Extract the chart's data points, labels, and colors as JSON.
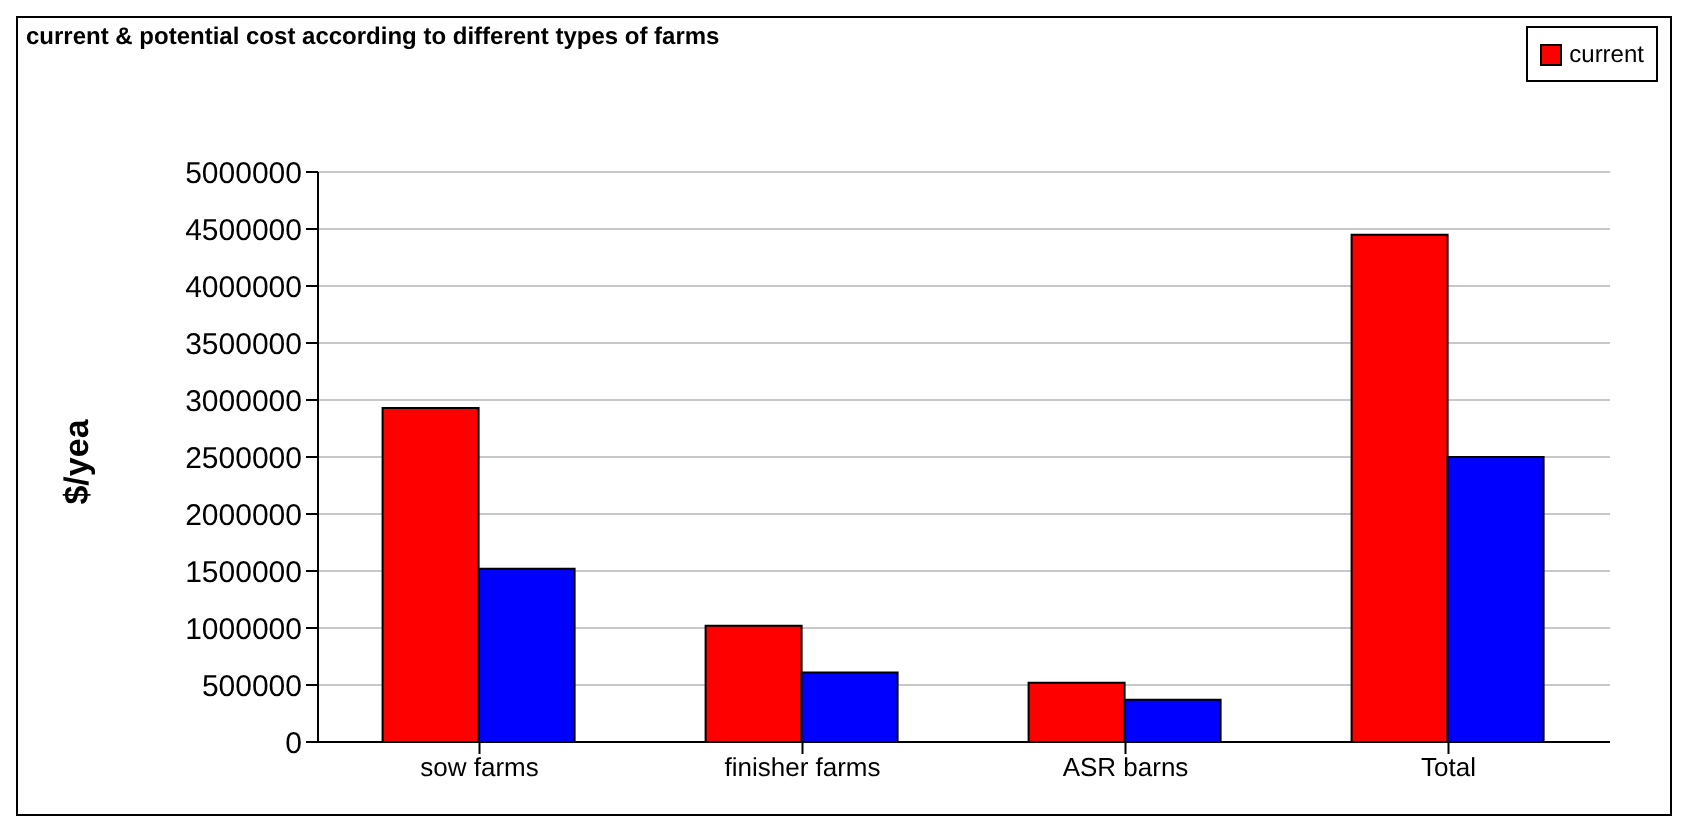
{
  "chart_data": {
    "type": "bar",
    "title": "current & potential cost according to different types of farms",
    "ylabel": "$/yea",
    "categories": [
      "sow farms",
      "finisher farms",
      "ASR barns",
      "Total"
    ],
    "series": [
      {
        "name": "current",
        "color": "#ff0000",
        "values": [
          2930000,
          1020000,
          520000,
          4450000
        ]
      },
      {
        "color": "#0000ff",
        "values": [
          1520000,
          610000,
          370000,
          2500000
        ]
      }
    ],
    "ylim": [
      0,
      5000000
    ],
    "yticks": [
      0,
      500000,
      1000000,
      1500000,
      2000000,
      2500000,
      3000000,
      3500000,
      4000000,
      4500000,
      5000000
    ],
    "grid": "y",
    "legend": "top right"
  }
}
